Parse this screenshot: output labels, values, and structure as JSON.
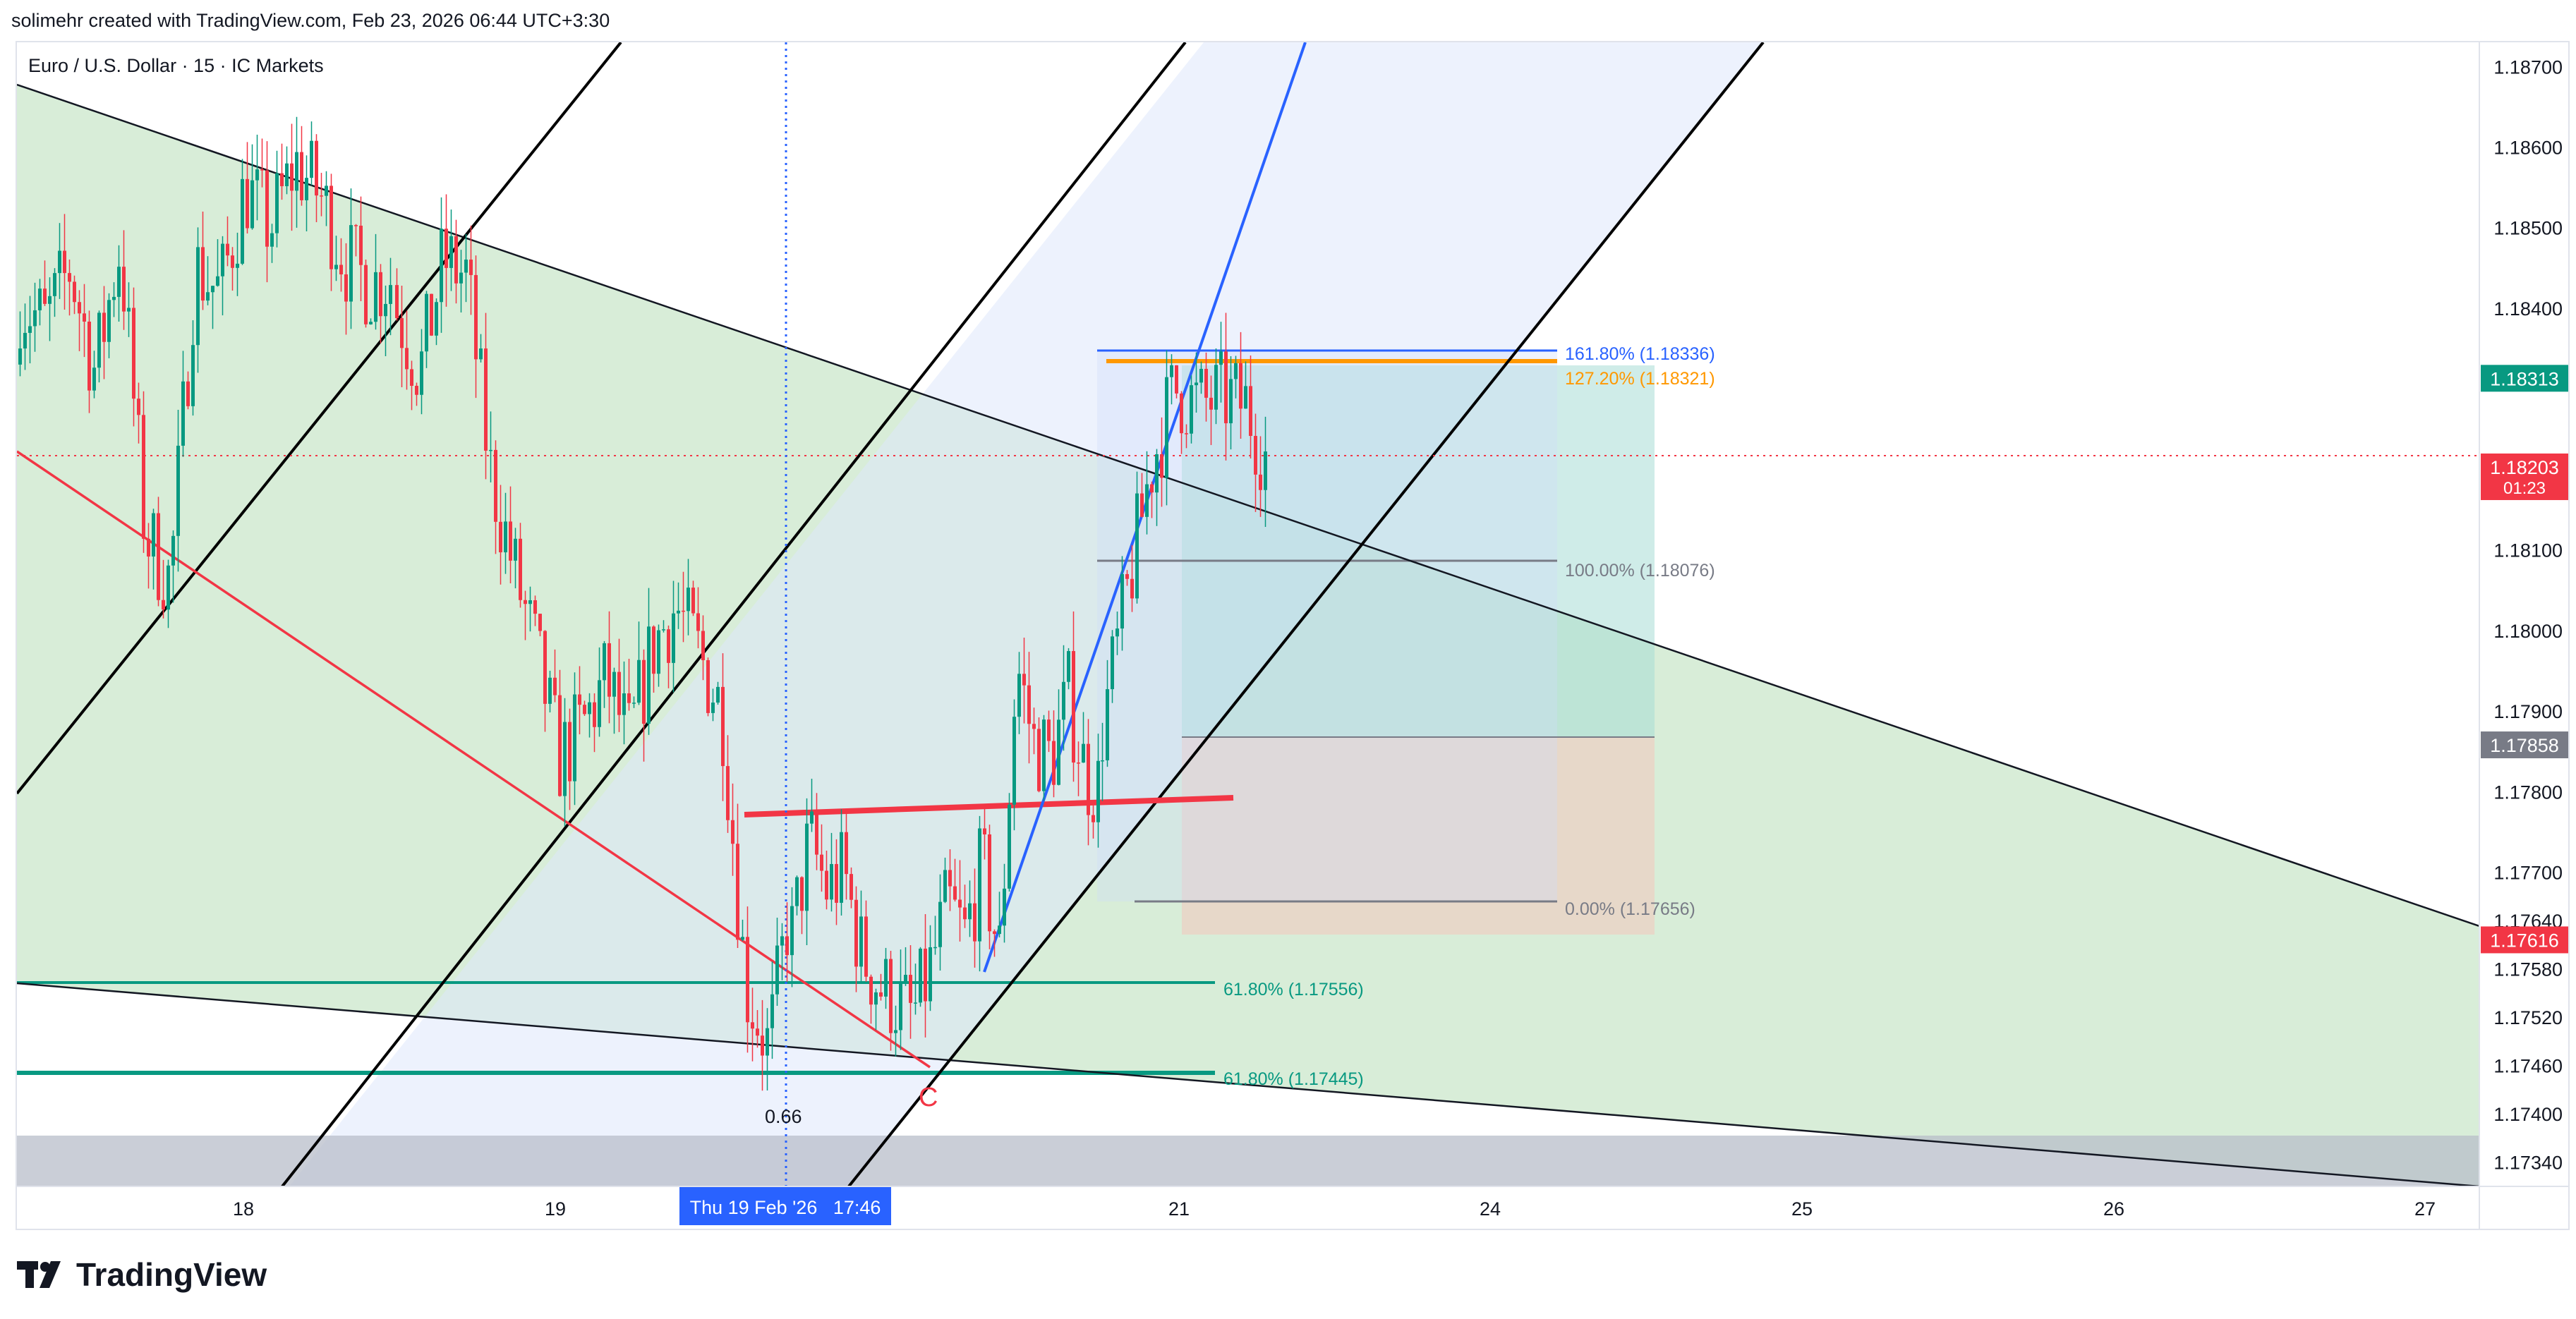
{
  "attribution": "solimehr created with TradingView.com, Feb 23, 2026 06:44 UTC+3:30",
  "brand": {
    "name": "TradingView",
    "logo_icon": "tradingview-logo-icon"
  },
  "colors": {
    "bull": "#089981",
    "bear": "#f23645",
    "pattern_green": "#d6ecd6",
    "channel_blue": "#edf3fe",
    "fib_blue": "#2962ff",
    "fib_orange": "#ff9800",
    "fib_teal": "#089981",
    "target_zone": "#c5ebe5",
    "stop_zone": "#f6ddd7"
  },
  "chart_data": {
    "type": "candlestick",
    "symbol_line": "Euro / U.S. Dollar · 15 · IC Markets",
    "x_ticks": [
      "18",
      "19",
      "21",
      "24",
      "25",
      "26",
      "27"
    ],
    "y_ticks": [
      "1.18700",
      "1.18600",
      "1.18500",
      "1.18400",
      "1.18100",
      "1.18000",
      "1.17900",
      "1.17800",
      "1.17700",
      "1.17640",
      "1.17580",
      "1.17520",
      "1.17460",
      "1.17400",
      "1.17340"
    ],
    "y_range": [
      1.1731,
      1.1873
    ],
    "price_labels": [
      {
        "value": "1.18313",
        "price": 1.18313,
        "color": "#089981"
      },
      {
        "value": "1.18203",
        "price": 1.18203,
        "color": "#f23645",
        "sub": "01:23"
      },
      {
        "value": "1.17858",
        "price": 1.17858,
        "color": "#787b86"
      },
      {
        "value": "1.17616",
        "price": 1.17616,
        "color": "#f23645"
      }
    ],
    "fib_labels": [
      {
        "text": "161.80% (1.18336)",
        "price": 1.18336,
        "color": "#2962ff"
      },
      {
        "text": "127.20% (1.18321)",
        "price": 1.18321,
        "color": "#ff9800"
      },
      {
        "text": "100.00% (1.18076)",
        "price": 1.18076,
        "color": "#787b86"
      },
      {
        "text": "0.00% (1.17656)",
        "price": 1.17656,
        "color": "#787b86"
      },
      {
        "text": "61.80% (1.17556)",
        "price": 1.17556,
        "color": "#089981"
      },
      {
        "text": "61.80% (1.17445)",
        "price": 1.17445,
        "color": "#089981"
      }
    ],
    "annotations": {
      "wave_label": "C",
      "ratio_label": "0.66",
      "crosshair_time": "Thu 19 Feb '26   17:46"
    },
    "close_segments": [
      {
        "from": "Feb 17",
        "to": "Feb 18 mid",
        "path": [
          1.1841,
          1.1838,
          1.1845,
          1.1832,
          1.1848,
          1.1812,
          1.1806,
          1.1845,
          1.1842,
          1.1855,
          1.185,
          1.1858,
          1.1854,
          1.1846,
          1.1843,
          1.1844
        ]
      },
      {
        "from": "Feb 18 mid",
        "to": "Feb 19",
        "path": [
          1.184,
          1.1832,
          1.1846,
          1.1844,
          1.182,
          1.1808,
          1.1797,
          1.1784,
          1.1788,
          1.1794,
          1.1786,
          1.1798,
          1.1803,
          1.1797,
          1.179,
          1.1756,
          1.1748,
          1.1768
        ]
      },
      {
        "from": "Feb 19",
        "to": "Feb 20",
        "path": [
          1.1762,
          1.1774,
          1.1768,
          1.177,
          1.176,
          1.1756,
          1.1754,
          1.1752,
          1.1758,
          1.1766,
          1.1762,
          1.1771,
          1.176,
          1.1796,
          1.1786,
          1.1784,
          1.1792,
          1.1782,
          1.178
        ]
      },
      {
        "from": "Feb 20",
        "to": "Feb 21",
        "path": [
          1.1788,
          1.1804,
          1.182,
          1.183,
          1.1828,
          1.1829,
          1.1828,
          1.182
        ]
      }
    ]
  }
}
